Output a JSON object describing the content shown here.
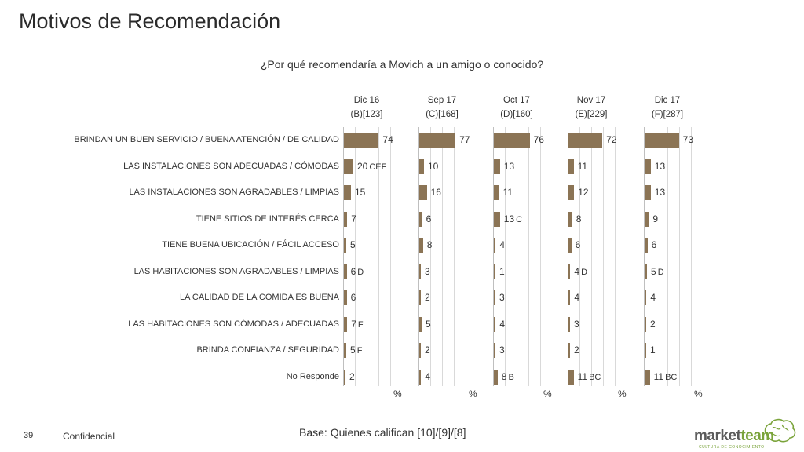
{
  "title": "Motivos de Recomendación",
  "footer": {
    "page_number": "39",
    "confidential": "Confidencial",
    "base": "Base: Quienes califican [10]/[9]/[8]",
    "logo_market": "market",
    "logo_team": "team",
    "logo_tagline": "CULTURA DE CONOCIMIENTO"
  },
  "colors": {
    "bar": "#8b7455",
    "logo_green": "#7aa33a"
  },
  "chart_data": {
    "type": "bar",
    "orientation": "horizontal",
    "title": "¿Por qué recomendaría a Movich a un amigo o conocido?",
    "categories": [
      "BRINDAN UN BUEN SERVICIO / BUENA ATENCIÓN / DE CALIDAD",
      "LAS INSTALACIONES SON ADECUADAS / CÓMODAS",
      "LAS INSTALACIONES SON AGRADABLES / LIMPIAS",
      "TIENE SITIOS DE INTERÉS CERCA",
      "TIENE BUENA UBICACIÓN / FÁCIL ACCESO",
      "LAS HABITACIONES SON AGRADABLES / LIMPIAS",
      "LA CALIDAD DE LA COMIDA ES BUENA",
      "LAS HABITACIONES SON CÓMODAS / ADECUADAS",
      "BRINDA CONFIANZA / SEGURIDAD",
      "No Responde"
    ],
    "unit_label": "%",
    "xlim": [
      0,
      100
    ],
    "grid": true,
    "series": [
      {
        "period": "Dic 16",
        "base": "(B)[123]",
        "values": [
          74,
          20,
          15,
          7,
          5,
          6,
          6,
          7,
          5,
          2
        ],
        "sig": [
          "",
          "CEF",
          "",
          "",
          "",
          "D",
          "",
          "F",
          "F",
          ""
        ]
      },
      {
        "period": "Sep 17",
        "base": "(C)[168]",
        "values": [
          77,
          10,
          16,
          6,
          8,
          3,
          2,
          5,
          2,
          4
        ],
        "sig": [
          "",
          "",
          "",
          "",
          "",
          "",
          "",
          "",
          "",
          ""
        ]
      },
      {
        "period": "Oct 17",
        "base": "(D)[160]",
        "values": [
          76,
          13,
          11,
          13,
          4,
          1,
          3,
          4,
          3,
          8
        ],
        "sig": [
          "",
          "",
          "",
          "C",
          "",
          "",
          "",
          "",
          "",
          "B"
        ]
      },
      {
        "period": "Nov 17",
        "base": "(E)[229]",
        "values": [
          72,
          11,
          12,
          8,
          6,
          4,
          4,
          3,
          2,
          11
        ],
        "sig": [
          "",
          "",
          "",
          "",
          "",
          "D",
          "",
          "",
          "",
          "BC"
        ]
      },
      {
        "period": "Dic 17",
        "base": "(F)[287]",
        "values": [
          73,
          13,
          13,
          9,
          6,
          5,
          4,
          2,
          1,
          11
        ],
        "sig": [
          "",
          "",
          "",
          "",
          "",
          "D",
          "",
          "",
          "",
          "BC"
        ]
      }
    ]
  }
}
